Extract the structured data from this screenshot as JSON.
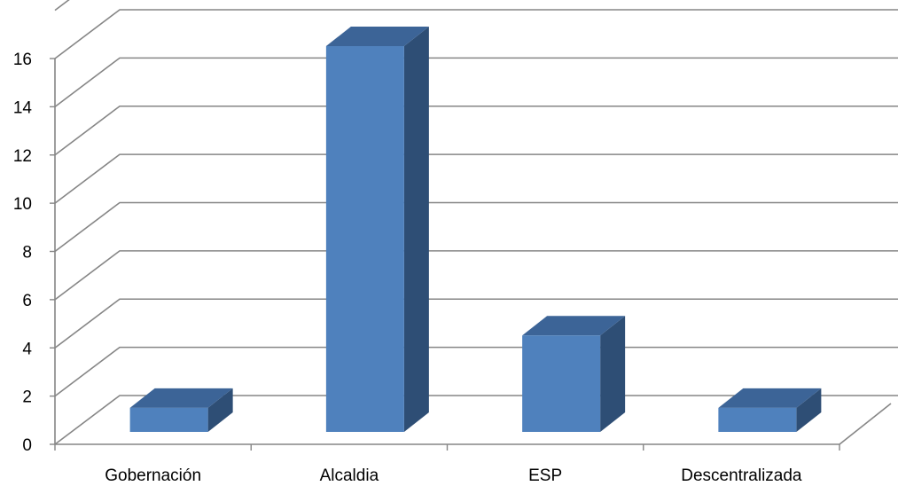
{
  "chart_data": {
    "type": "bar",
    "title": "",
    "xlabel": "",
    "ylabel": "",
    "categories": [
      "Gobernación",
      "Alcaldia",
      "ESP",
      "Descentralizada"
    ],
    "values": [
      1,
      16,
      4,
      1
    ],
    "ylim": [
      0,
      16
    ],
    "yticks": [
      0,
      2,
      4,
      6,
      8,
      10,
      12,
      14,
      16
    ],
    "grid": true,
    "three_d": true,
    "legend": "none",
    "colors": {
      "bar_front": "#4F81BD",
      "bar_top": "#3C6497",
      "bar_side": "#2E4E75",
      "gridline": "#868686",
      "axis": "#868686"
    }
  }
}
